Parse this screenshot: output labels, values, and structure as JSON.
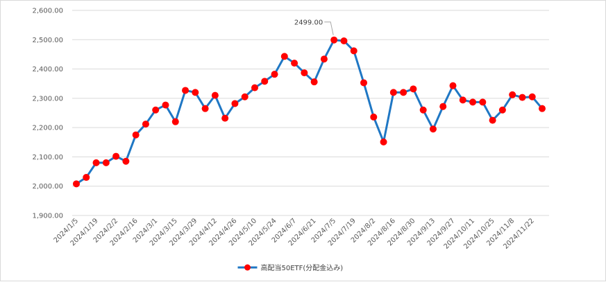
{
  "chart_data": {
    "type": "line",
    "title": "",
    "xlabel": "",
    "ylabel": "",
    "ylim": [
      1900,
      2600
    ],
    "yticks": [
      "1,900.00",
      "2,000.00",
      "2,100.00",
      "2,200.00",
      "2,300.00",
      "2,400.00",
      "2,500.00",
      "2,600.00"
    ],
    "grid": "horizontal",
    "legend_position": "bottom",
    "x_tick_labels": [
      "2024/1/5",
      "2024/1/19",
      "2024/2/2",
      "2024/2/16",
      "2024/3/1",
      "2024/3/15",
      "2024/3/29",
      "2024/4/12",
      "2024/4/26",
      "2024/5/10",
      "2024/5/24",
      "2024/6/7",
      "2024/6/21",
      "2024/7/5",
      "2024/7/19",
      "2024/8/2",
      "2024/8/16",
      "2024/8/30",
      "2024/9/13",
      "2024/9/27",
      "2024/10/11",
      "2024/10/25",
      "2024/11/8",
      "2024/11/22"
    ],
    "x": [
      "2024/1/5",
      "2024/1/12",
      "2024/1/19",
      "2024/1/26",
      "2024/2/2",
      "2024/2/9",
      "2024/2/16",
      "2024/2/23",
      "2024/3/1",
      "2024/3/8",
      "2024/3/15",
      "2024/3/22",
      "2024/3/29",
      "2024/4/5",
      "2024/4/12",
      "2024/4/19",
      "2024/4/26",
      "2024/5/3",
      "2024/5/10",
      "2024/5/17",
      "2024/5/24",
      "2024/5/31",
      "2024/6/7",
      "2024/6/14",
      "2024/6/21",
      "2024/6/28",
      "2024/7/5",
      "2024/7/12",
      "2024/7/19",
      "2024/7/26",
      "2024/8/2",
      "2024/8/9",
      "2024/8/16",
      "2024/8/23",
      "2024/8/30",
      "2024/9/6",
      "2024/9/13",
      "2024/9/20",
      "2024/9/27",
      "2024/10/4",
      "2024/10/11",
      "2024/10/18",
      "2024/10/25",
      "2024/11/1",
      "2024/11/8",
      "2024/11/15",
      "2024/11/22",
      "2024/11/29"
    ],
    "series": [
      {
        "name": "高配当50ETF(分配金込み)",
        "line_color": "#1f77c4",
        "marker_color": "#ff0000",
        "values": [
          2008,
          2030,
          2080,
          2080,
          2102,
          2085,
          2175,
          2212,
          2260,
          2277,
          2220,
          2327,
          2320,
          2265,
          2310,
          2232,
          2282,
          2305,
          2336,
          2358,
          2382,
          2443,
          2420,
          2387,
          2356,
          2434,
          2499,
          2496,
          2462,
          2353,
          2236,
          2151,
          2320,
          2320,
          2332,
          2260,
          2195,
          2272,
          2343,
          2294,
          2287,
          2287,
          2225,
          2260,
          2312,
          2303,
          2305,
          2265
        ]
      }
    ],
    "annotations": [
      {
        "text": "2499.00",
        "x": "2024/7/5",
        "y": 2499
      }
    ]
  }
}
